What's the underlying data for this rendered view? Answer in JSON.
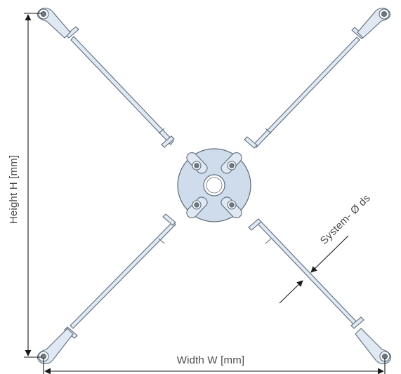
{
  "labels": {
    "height": "Height H [mm]",
    "width": "Width W [mm]",
    "system_diameter": "System- Ø ds"
  },
  "colors": {
    "rod_fill": "#dfe8f3",
    "rod_stroke": "#5e6b78",
    "plate_fill": "#cfdcec",
    "dimension_line": "#1a1a1a",
    "label_text": "#4a4a4a",
    "pin": "#6f7780"
  },
  "icons": {
    "center_plate": "cross-connector-disc",
    "end_fork": "rod-end-eye"
  }
}
